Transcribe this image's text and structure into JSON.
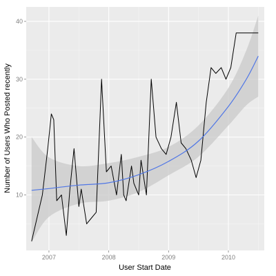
{
  "chart_data": {
    "type": "line",
    "title": "",
    "xlabel": "User Start Date",
    "ylabel": "Number of Users Who Posted recently",
    "x_ticks": [
      {
        "value": 2007,
        "label": "2007"
      },
      {
        "value": 2008,
        "label": "2008"
      },
      {
        "value": 2009,
        "label": "2009"
      },
      {
        "value": 2010,
        "label": "2010"
      }
    ],
    "y_ticks": [
      {
        "value": 10,
        "label": "10"
      },
      {
        "value": 20,
        "label": "20"
      },
      {
        "value": 30,
        "label": "30"
      },
      {
        "value": 40,
        "label": "40"
      }
    ],
    "xlim": [
      2006.62,
      2010.6
    ],
    "ylim": [
      0.4,
      42.5
    ],
    "grid": true,
    "series": [
      {
        "kind": "observed",
        "x": [
          2006.71,
          2006.89,
          2006.98,
          2007.04,
          2007.08,
          2007.13,
          2007.21,
          2007.29,
          2007.35,
          2007.42,
          2007.5,
          2007.54,
          2007.63,
          2007.71,
          2007.79,
          2007.88,
          2007.96,
          2008.04,
          2008.13,
          2008.21,
          2008.25,
          2008.29,
          2008.38,
          2008.42,
          2008.5,
          2008.54,
          2008.63,
          2008.71,
          2008.79,
          2008.88,
          2008.96,
          2009.04,
          2009.13,
          2009.21,
          2009.29,
          2009.38,
          2009.46,
          2009.54,
          2009.63,
          2009.71,
          2009.79,
          2009.88,
          2009.96,
          2010.04,
          2010.13,
          2010.21,
          2010.29,
          2010.38,
          2010.46,
          2010.5
        ],
        "y": [
          2,
          10,
          18,
          24,
          23,
          9,
          10,
          3,
          11,
          18,
          8,
          11,
          5,
          6,
          7,
          30,
          14,
          15,
          10,
          17,
          10,
          9,
          15,
          12,
          10,
          16,
          10,
          30,
          20,
          18,
          17,
          20,
          26,
          19,
          18,
          16,
          13,
          16,
          26,
          32,
          31,
          32,
          30,
          32,
          38,
          38,
          38,
          38,
          38,
          38
        ]
      },
      {
        "kind": "smooth",
        "x": [
          2006.71,
          2007.0,
          2007.5,
          2008.0,
          2008.5,
          2009.0,
          2009.5,
          2010.0,
          2010.3,
          2010.5
        ],
        "y": [
          10.8,
          11.1,
          11.7,
          12.1,
          13.5,
          15.8,
          19.3,
          25.3,
          30.0,
          34.0
        ],
        "upper": [
          20.0,
          16.5,
          15.0,
          15.5,
          16.6,
          18.3,
          22.0,
          28.5,
          35.0,
          41.0
        ],
        "lower": [
          1.8,
          6.2,
          8.5,
          9.0,
          10.5,
          13.4,
          16.6,
          22.0,
          25.5,
          27.0
        ]
      }
    ]
  },
  "colors": {
    "panel_background": "#ebebeb",
    "grid_major": "#ffffff",
    "grid_minor": "#f5f5f5",
    "confidence_band": "#c9c9c9",
    "observed_line": "#000000",
    "smooth_line": "#4f76e6",
    "tick_text": "#7f7f7f"
  }
}
